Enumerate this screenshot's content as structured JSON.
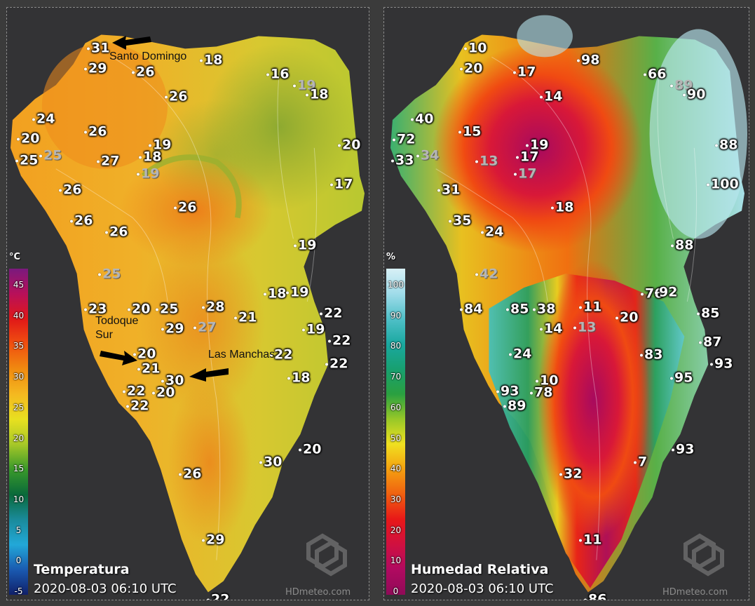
{
  "temperature_map": {
    "unit": "°C",
    "title": "Temperatura",
    "timestamp": "2020-08-03 06:10 UTC",
    "watermark": "HDmeteo.com",
    "legend": {
      "ticks": [
        "45",
        "40",
        "35",
        "30",
        "25",
        "20",
        "15",
        "10",
        "5",
        "0",
        "-5"
      ],
      "colors": [
        "#7a1a7e",
        "#b8105a",
        "#e01818",
        "#f05010",
        "#f08a10",
        "#f4b820",
        "#e8e020",
        "#a8c828",
        "#3a9a2a",
        "#0a6a3a",
        "#1a8a9a",
        "#22a8d8",
        "#1a5ab0",
        "#10206a"
      ]
    },
    "stations": [
      {
        "value": "31",
        "gray": false
      },
      {
        "value": "29",
        "gray": false
      },
      {
        "value": "26",
        "gray": false
      },
      {
        "value": "18",
        "gray": false
      },
      {
        "value": "16",
        "gray": false
      },
      {
        "value": "19",
        "gray": true
      },
      {
        "value": "18",
        "gray": false
      },
      {
        "value": "26",
        "gray": false
      },
      {
        "value": "24",
        "gray": false
      },
      {
        "value": "20",
        "gray": false
      },
      {
        "value": "25",
        "gray": false
      },
      {
        "value": "25",
        "gray": true
      },
      {
        "value": "26",
        "gray": false
      },
      {
        "value": "27",
        "gray": false
      },
      {
        "value": "19",
        "gray": false
      },
      {
        "value": "18",
        "gray": false
      },
      {
        "value": "19",
        "gray": true
      },
      {
        "value": "20",
        "gray": false
      },
      {
        "value": "17",
        "gray": false
      },
      {
        "value": "26",
        "gray": false
      },
      {
        "value": "26",
        "gray": false
      },
      {
        "value": "26",
        "gray": false
      },
      {
        "value": "26",
        "gray": false
      },
      {
        "value": "19",
        "gray": false
      },
      {
        "value": "25",
        "gray": true
      },
      {
        "value": "18",
        "gray": false
      },
      {
        "value": "19",
        "gray": false
      },
      {
        "value": "23",
        "gray": false
      },
      {
        "value": "20",
        "gray": false
      },
      {
        "value": "25",
        "gray": false
      },
      {
        "value": "28",
        "gray": false
      },
      {
        "value": "29",
        "gray": false
      },
      {
        "value": "27",
        "gray": true
      },
      {
        "value": "21",
        "gray": false
      },
      {
        "value": "22",
        "gray": false
      },
      {
        "value": "19",
        "gray": false
      },
      {
        "value": "22",
        "gray": false
      },
      {
        "value": "20",
        "gray": false
      },
      {
        "value": "21",
        "gray": false
      },
      {
        "value": "30",
        "gray": false
      },
      {
        "value": "22",
        "gray": false
      },
      {
        "value": "22",
        "gray": false
      },
      {
        "value": "18",
        "gray": false
      },
      {
        "value": "22",
        "gray": false
      },
      {
        "value": "20",
        "gray": false
      },
      {
        "value": "22",
        "gray": false
      },
      {
        "value": "20",
        "gray": false
      },
      {
        "value": "30",
        "gray": false
      },
      {
        "value": "26",
        "gray": false
      },
      {
        "value": "29",
        "gray": false
      },
      {
        "value": "22",
        "gray": false
      }
    ],
    "annotations": [
      {
        "label": "Santo Domingo"
      },
      {
        "label": "Todoque Sur"
      },
      {
        "label": "Las Manchas"
      }
    ]
  },
  "humidity_map": {
    "unit": "%",
    "title": "Humedad Relativa",
    "timestamp": "2020-08-03 06:10 UTC",
    "watermark": "HDmeteo.com",
    "legend": {
      "ticks": [
        "100",
        "90",
        "80",
        "70",
        "60",
        "50",
        "40",
        "30",
        "20",
        "10",
        "0"
      ],
      "colors": [
        "#d8f0f6",
        "#a0dcea",
        "#50c0c8",
        "#1aa8a0",
        "#18a070",
        "#2aa040",
        "#98c828",
        "#f0e020",
        "#f4a010",
        "#f06010",
        "#e81818",
        "#d01040",
        "#b00a60",
        "#900a58"
      ]
    },
    "stations": [
      {
        "value": "10",
        "gray": false
      },
      {
        "value": "20",
        "gray": false
      },
      {
        "value": "17",
        "gray": false
      },
      {
        "value": "98",
        "gray": false
      },
      {
        "value": "66",
        "gray": false
      },
      {
        "value": "89",
        "gray": true
      },
      {
        "value": "90",
        "gray": false
      },
      {
        "value": "14",
        "gray": false
      },
      {
        "value": "40",
        "gray": false
      },
      {
        "value": "72",
        "gray": false
      },
      {
        "value": "33",
        "gray": false
      },
      {
        "value": "34",
        "gray": true
      },
      {
        "value": "15",
        "gray": false
      },
      {
        "value": "19",
        "gray": false
      },
      {
        "value": "17",
        "gray": false
      },
      {
        "value": "13",
        "gray": true
      },
      {
        "value": "17",
        "gray": true
      },
      {
        "value": "88",
        "gray": false
      },
      {
        "value": "100",
        "gray": false
      },
      {
        "value": "31",
        "gray": false
      },
      {
        "value": "18",
        "gray": false
      },
      {
        "value": "35",
        "gray": false
      },
      {
        "value": "24",
        "gray": false
      },
      {
        "value": "88",
        "gray": false
      },
      {
        "value": "42",
        "gray": true
      },
      {
        "value": "76",
        "gray": false
      },
      {
        "value": "92",
        "gray": false
      },
      {
        "value": "84",
        "gray": false
      },
      {
        "value": "85",
        "gray": false
      },
      {
        "value": "38",
        "gray": false
      },
      {
        "value": "11",
        "gray": false
      },
      {
        "value": "14",
        "gray": false
      },
      {
        "value": "13",
        "gray": true
      },
      {
        "value": "20",
        "gray": false
      },
      {
        "value": "85",
        "gray": false
      },
      {
        "value": "87",
        "gray": false
      },
      {
        "value": "93",
        "gray": false
      },
      {
        "value": "24",
        "gray": false
      },
      {
        "value": "83",
        "gray": false
      },
      {
        "value": "10",
        "gray": false
      },
      {
        "value": "95",
        "gray": false
      },
      {
        "value": "93",
        "gray": false
      },
      {
        "value": "78",
        "gray": false
      },
      {
        "value": "89",
        "gray": false
      },
      {
        "value": "93",
        "gray": false
      },
      {
        "value": "7",
        "gray": false
      },
      {
        "value": "32",
        "gray": false
      },
      {
        "value": "11",
        "gray": false
      },
      {
        "value": "86",
        "gray": false
      }
    ]
  }
}
